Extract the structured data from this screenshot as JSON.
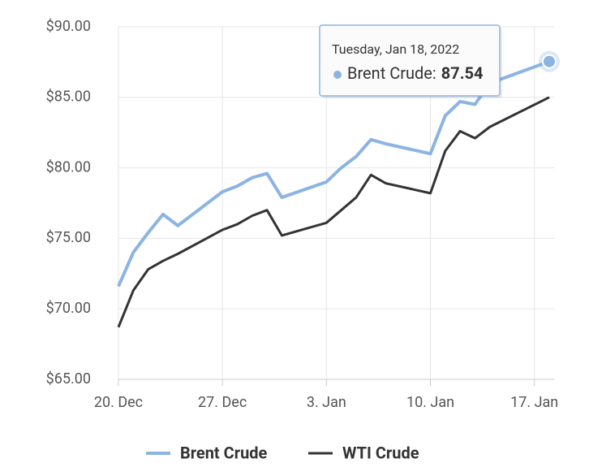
{
  "chart_data": {
    "type": "line",
    "x": [
      "20. Dec",
      "21. Dec",
      "22. Dec",
      "23. Dec",
      "24. Dec",
      "27. Dec",
      "28. Dec",
      "29. Dec",
      "30. Dec",
      "31. Dec",
      "3. Jan",
      "4. Jan",
      "5. Jan",
      "6. Jan",
      "7. Jan",
      "10. Jan",
      "11. Jan",
      "12. Jan",
      "13. Jan",
      "14. Jan",
      "18. Jan"
    ],
    "series": [
      {
        "name": "Brent Crude",
        "color": "#8cb4e3",
        "values": [
          71.6,
          74.0,
          75.4,
          76.7,
          75.9,
          78.3,
          78.7,
          79.3,
          79.6,
          77.9,
          79.0,
          80.0,
          80.8,
          82.0,
          81.7,
          81.0,
          83.7,
          84.7,
          84.5,
          86.0,
          87.54
        ]
      },
      {
        "name": "WTI Crude",
        "color": "#333333",
        "values": [
          68.7,
          71.3,
          72.8,
          73.4,
          73.9,
          75.6,
          76.0,
          76.6,
          77.0,
          75.2,
          76.1,
          77.0,
          77.9,
          79.5,
          78.9,
          78.2,
          81.2,
          82.6,
          82.1,
          82.9,
          85.0
        ]
      }
    ],
    "xlim": [
      "20. Dec",
      "18. Jan"
    ],
    "xticks": [
      "20. Dec",
      "27. Dec",
      "3. Jan",
      "10. Jan",
      "17. Jan"
    ],
    "ylim": [
      65,
      90
    ],
    "yticks": [
      {
        "value": 65,
        "label": "$65.00"
      },
      {
        "value": 70,
        "label": "$70.00"
      },
      {
        "value": 75,
        "label": "$75.00"
      },
      {
        "value": 80,
        "label": "$80.00"
      },
      {
        "value": 85,
        "label": "$85.00"
      },
      {
        "value": 90,
        "label": "$90.00"
      }
    ],
    "grid": true,
    "legend": "bottom",
    "tooltip": {
      "title": "Tuesday, Jan 18, 2022",
      "label": "Brent Crude:",
      "series": 0,
      "point": 20
    }
  }
}
